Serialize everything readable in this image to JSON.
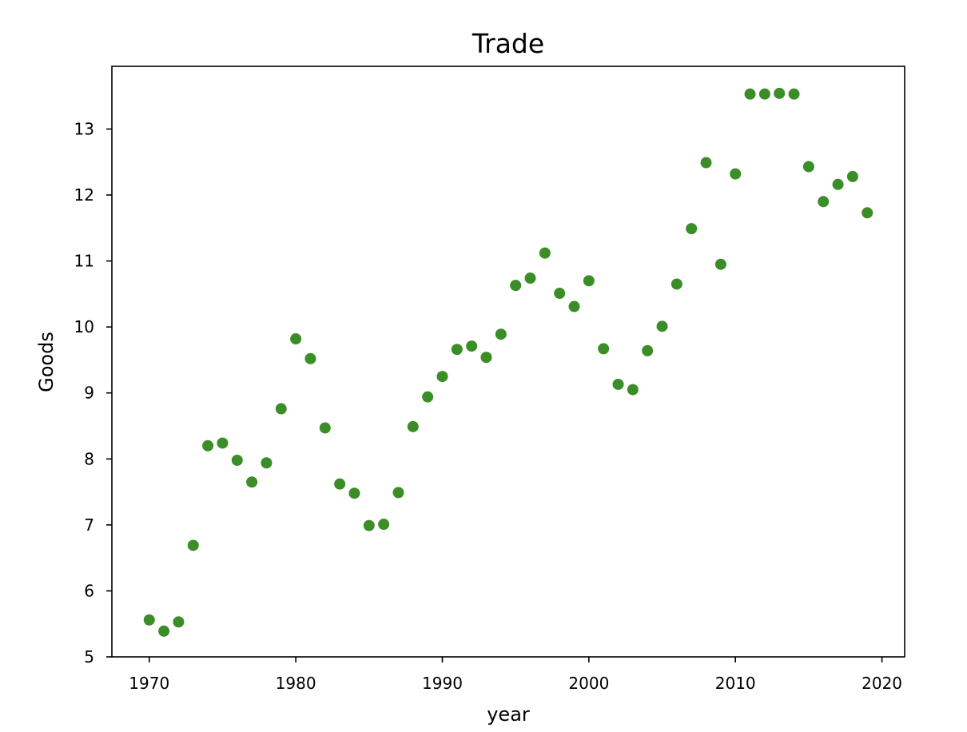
{
  "chart_data": {
    "type": "scatter",
    "title": "Trade",
    "xlabel": "year",
    "ylabel": "Goods",
    "xlim": [
      1967.45,
      2021.55
    ],
    "ylim": [
      5,
      13.95
    ],
    "x_ticks": [
      1970,
      1980,
      1990,
      2000,
      2010,
      2020
    ],
    "y_ticks": [
      5,
      6,
      7,
      8,
      9,
      10,
      11,
      12,
      13
    ],
    "grid": false,
    "legend": "none",
    "marker_color": "#3a8d27",
    "series": [
      {
        "x": [
          1970,
          1971,
          1972,
          1973,
          1974,
          1975,
          1976,
          1977,
          1978,
          1979,
          1980,
          1981,
          1982,
          1983,
          1984,
          1985,
          1986,
          1987,
          1988,
          1989,
          1990,
          1991,
          1992,
          1993,
          1994,
          1995,
          1996,
          1997,
          1998,
          1999,
          2000,
          2001,
          2002,
          2003,
          2004,
          2005,
          2006,
          2007,
          2008,
          2009,
          2010,
          2011,
          2012,
          2013,
          2014,
          2015,
          2016,
          2017,
          2018,
          2019
        ],
        "y": [
          5.56,
          5.39,
          5.53,
          6.69,
          8.2,
          8.24,
          7.98,
          7.65,
          7.94,
          8.76,
          9.82,
          9.52,
          8.47,
          7.62,
          7.48,
          6.99,
          7.01,
          7.49,
          8.49,
          8.94,
          9.25,
          9.66,
          9.71,
          9.54,
          9.89,
          10.63,
          10.74,
          11.12,
          10.51,
          10.31,
          10.7,
          9.67,
          9.13,
          9.05,
          9.64,
          10.01,
          10.65,
          11.49,
          12.49,
          10.95,
          12.32,
          13.53,
          13.53,
          13.54,
          13.53,
          12.43,
          11.9,
          12.16,
          12.28,
          11.73
        ]
      }
    ]
  }
}
